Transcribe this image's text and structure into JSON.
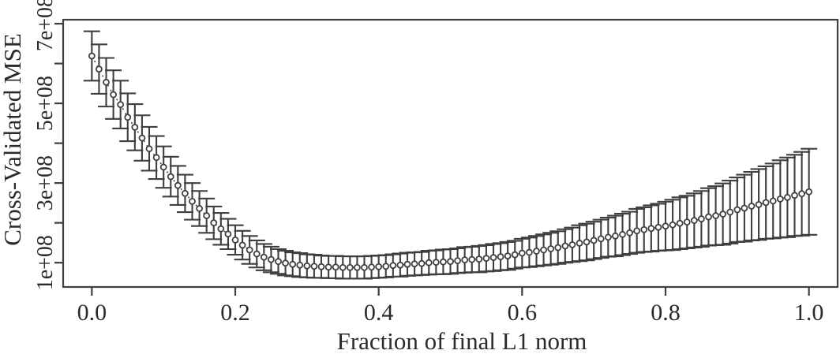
{
  "figure": {
    "background_color": "#ffffff",
    "ink_color": "#3f3f3f",
    "text_color": "#2a2a2a"
  },
  "chart_data": {
    "type": "scatter",
    "subtype": "points-with-error-bars",
    "title": "",
    "xlabel": "Fraction of final L1 norm",
    "ylabel": "Cross-Validated MSE",
    "grid": false,
    "legend": "none",
    "frame": "full-box",
    "marker": "open-circle",
    "connector": "dotted-line",
    "error_bars": "symmetric, capped, approx ±1 SE",
    "xlim": [
      -0.04,
      1.04
    ],
    "ylim_1e8": [
      0.39,
      7.1
    ],
    "value_unit": "1e+08",
    "x_ticks": [
      {
        "value": 0.0,
        "label": "0.0"
      },
      {
        "value": 0.2,
        "label": "0.2"
      },
      {
        "value": 0.4,
        "label": "0.4"
      },
      {
        "value": 0.6,
        "label": "0.6"
      },
      {
        "value": 0.8,
        "label": "0.8"
      },
      {
        "value": 1.0,
        "label": "1.0"
      }
    ],
    "y_ticks_1e8": [
      {
        "value": 1,
        "label": "1e+08"
      },
      {
        "value": 2,
        "label": ""
      },
      {
        "value": 3,
        "label": "3e+08"
      },
      {
        "value": 4,
        "label": ""
      },
      {
        "value": 5,
        "label": "5e+08"
      },
      {
        "value": 6,
        "label": ""
      },
      {
        "value": 7,
        "label": "7e+08"
      }
    ],
    "series": [
      {
        "name": "cross-validated MSE",
        "x_start": 0.0,
        "x_step": 0.01,
        "n_points": 101,
        "mse_1e8": [
          6.19,
          5.86,
          5.53,
          5.22,
          4.97,
          4.65,
          4.4,
          4.13,
          3.86,
          3.64,
          3.4,
          3.16,
          2.94,
          2.74,
          2.54,
          2.36,
          2.18,
          2.0,
          1.85,
          1.72,
          1.57,
          1.44,
          1.32,
          1.22,
          1.14,
          1.08,
          1.03,
          0.99,
          0.96,
          0.94,
          0.92,
          0.91,
          0.9,
          0.89,
          0.89,
          0.88,
          0.88,
          0.88,
          0.88,
          0.89,
          0.9,
          0.91,
          0.93,
          0.94,
          0.96,
          0.97,
          0.98,
          1.0,
          1.01,
          1.02,
          1.03,
          1.05,
          1.07,
          1.08,
          1.09,
          1.11,
          1.13,
          1.15,
          1.17,
          1.2,
          1.24,
          1.26,
          1.29,
          1.32,
          1.35,
          1.38,
          1.42,
          1.45,
          1.49,
          1.52,
          1.56,
          1.6,
          1.64,
          1.67,
          1.71,
          1.75,
          1.8,
          1.83,
          1.86,
          1.89,
          1.92,
          1.95,
          1.99,
          2.02,
          2.06,
          2.1,
          2.15,
          2.18,
          2.22,
          2.27,
          2.33,
          2.37,
          2.42,
          2.46,
          2.51,
          2.55,
          2.6,
          2.64,
          2.69,
          2.73,
          2.78
        ],
        "se_1e8": [
          0.62,
          0.62,
          0.61,
          0.61,
          0.6,
          0.6,
          0.58,
          0.57,
          0.55,
          0.54,
          0.52,
          0.5,
          0.49,
          0.47,
          0.46,
          0.44,
          0.43,
          0.41,
          0.4,
          0.38,
          0.37,
          0.36,
          0.35,
          0.34,
          0.33,
          0.32,
          0.31,
          0.31,
          0.3,
          0.3,
          0.29,
          0.29,
          0.28,
          0.28,
          0.28,
          0.28,
          0.28,
          0.28,
          0.28,
          0.28,
          0.28,
          0.28,
          0.28,
          0.29,
          0.29,
          0.29,
          0.29,
          0.3,
          0.3,
          0.31,
          0.31,
          0.31,
          0.32,
          0.32,
          0.33,
          0.33,
          0.34,
          0.34,
          0.35,
          0.35,
          0.36,
          0.37,
          0.38,
          0.39,
          0.4,
          0.41,
          0.42,
          0.43,
          0.45,
          0.46,
          0.47,
          0.48,
          0.49,
          0.51,
          0.52,
          0.53,
          0.55,
          0.56,
          0.58,
          0.59,
          0.61,
          0.63,
          0.65,
          0.66,
          0.68,
          0.7,
          0.72,
          0.74,
          0.77,
          0.79,
          0.81,
          0.84,
          0.86,
          0.89,
          0.91,
          0.94,
          0.97,
          1.0,
          1.02,
          1.05,
          1.08
        ]
      }
    ]
  }
}
